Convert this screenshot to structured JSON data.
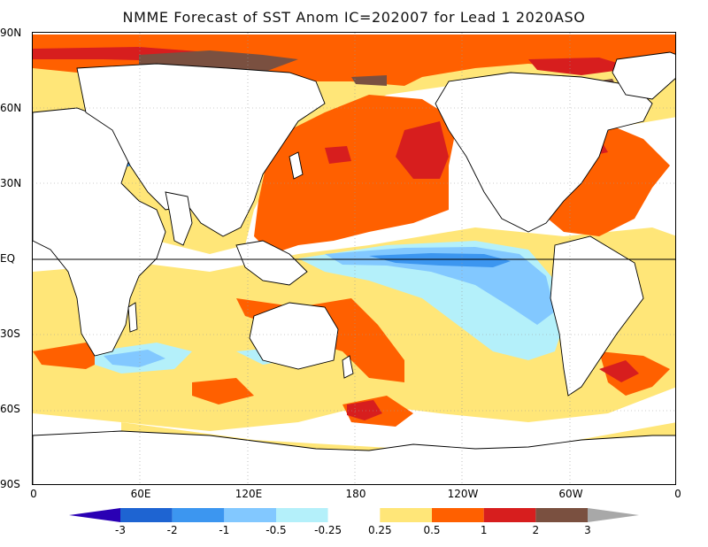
{
  "title": "NMME Forecast of SST Anom IC=202007 for Lead 1 2020ASO",
  "y_axis_labels": [
    "90N",
    "60N",
    "30N",
    "EQ",
    "30S",
    "60S",
    "90S"
  ],
  "x_axis_labels": [
    "0",
    "60E",
    "120E",
    "180",
    "120W",
    "60W",
    "0"
  ],
  "colorbar": {
    "labels": [
      "-3",
      "-2",
      "-1",
      "-0.5",
      "-0.25",
      "0.25",
      "0.5",
      "1",
      "2",
      "3"
    ],
    "colors": [
      "#2a00b4",
      "#1e64d2",
      "#3c96f0",
      "#82c8ff",
      "#b4f0fa",
      "#ffffff",
      "#ffe678",
      "#ff6000",
      "#d71e1e",
      "#7a5040",
      "#a8a8a8"
    ]
  },
  "colors": {
    "land_fill": "#ffffff",
    "coastline": "#000000",
    "equator_line": "#000000"
  }
}
